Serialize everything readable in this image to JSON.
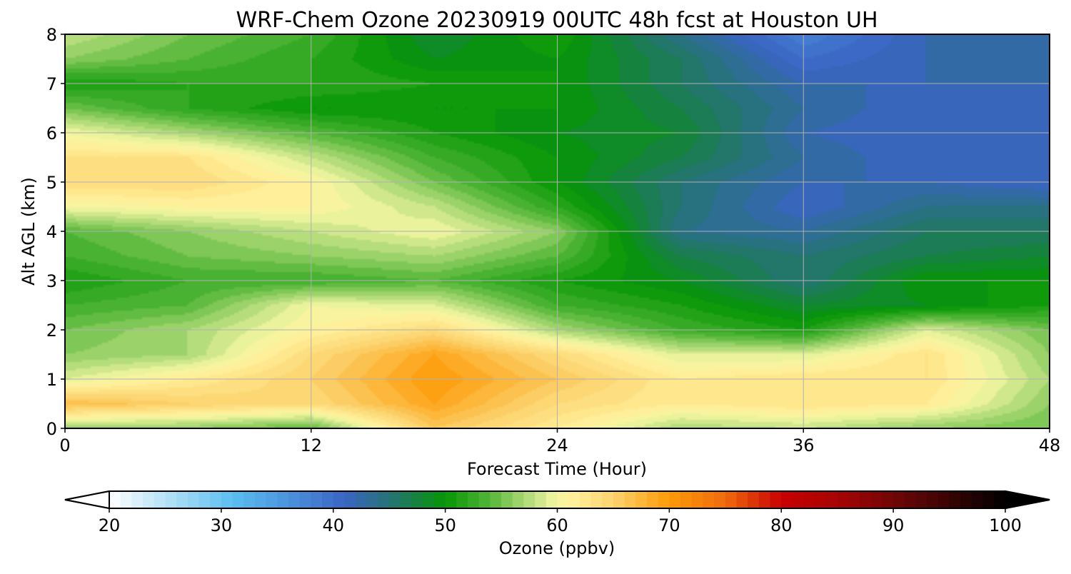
{
  "chart_data": {
    "type": "heatmap",
    "title": "WRF-Chem Ozone  20230919 00UTC 48h fcst at Houston UH",
    "xlabel": "Forecast Time (Hour)",
    "ylabel": "Alt AGL (km)",
    "xlim": [
      0,
      48
    ],
    "ylim": [
      0,
      8
    ],
    "xticks": [
      0,
      12,
      24,
      36,
      48
    ],
    "yticks": [
      0,
      1,
      2,
      3,
      4,
      5,
      6,
      7,
      8
    ],
    "grid": true,
    "colorbar": {
      "label": "Ozone  (ppbv)",
      "min": 20,
      "max": 100,
      "step": 1,
      "ticks": [
        20,
        30,
        40,
        50,
        60,
        70,
        80,
        90,
        100
      ],
      "extend": "both",
      "placement": "bottom"
    },
    "x": [
      0,
      6,
      12,
      18,
      24,
      30,
      36,
      42,
      48
    ],
    "y": [
      0,
      0.5,
      1,
      1.5,
      2,
      2.5,
      3,
      3.5,
      4,
      4.5,
      5,
      5.5,
      6,
      6.5,
      7,
      7.5,
      8
    ],
    "values": [
      [
        56,
        56,
        54,
        66,
        62,
        57,
        58,
        56,
        55
      ],
      [
        67,
        65,
        64,
        69,
        64,
        62,
        63,
        62,
        56
      ],
      [
        59,
        62,
        65,
        70,
        66,
        62,
        63,
        63,
        57
      ],
      [
        56,
        57,
        64,
        69,
        64,
        59,
        59,
        63,
        56
      ],
      [
        55,
        57,
        61,
        64,
        57,
        53,
        51,
        59,
        55
      ],
      [
        53,
        54,
        60,
        59,
        53,
        51,
        48,
        49,
        51
      ],
      [
        51,
        53,
        53,
        54,
        51,
        49,
        45,
        50,
        50
      ],
      [
        53,
        55,
        56,
        57,
        54,
        47,
        45,
        47,
        48
      ],
      [
        54,
        56,
        58,
        60,
        56,
        44,
        43,
        46,
        46
      ],
      [
        60,
        61,
        61,
        58,
        52,
        45,
        41,
        44,
        44
      ],
      [
        64,
        64,
        61,
        55,
        50,
        45,
        42,
        42,
        41
      ],
      [
        63,
        63,
        58,
        53,
        50,
        47,
        43,
        41,
        41
      ],
      [
        60,
        57,
        54,
        51,
        49,
        48,
        42,
        41,
        42
      ],
      [
        55,
        52,
        50,
        50,
        50,
        47,
        43,
        41,
        42
      ],
      [
        51,
        52,
        52,
        51,
        50,
        46,
        42,
        42,
        42
      ],
      [
        56,
        54,
        52,
        49,
        50,
        46,
        40,
        42,
        42
      ],
      [
        58,
        55,
        53,
        48,
        51,
        44,
        38,
        42,
        42
      ]
    ]
  }
}
